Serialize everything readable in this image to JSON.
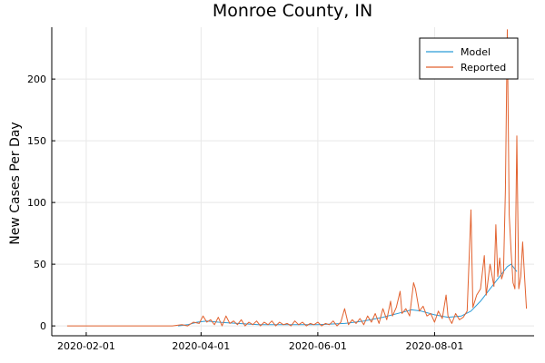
{
  "chart_data": {
    "type": "line",
    "title": "Monroe County, IN",
    "xlabel": "",
    "ylabel": "New Cases Per Day",
    "xlim": [
      "2020-01-14",
      "2020-09-22"
    ],
    "ylim": [
      -8,
      242
    ],
    "x_ticks": [
      "2020-02-01",
      "2020-04-01",
      "2020-06-01",
      "2020-08-01"
    ],
    "y_ticks": [
      0,
      50,
      100,
      150,
      200
    ],
    "grid": true,
    "legend_position": "top-right",
    "series": [
      {
        "name": "Model",
        "color": "#2b9cd8",
        "points": [
          [
            "2020-03-20",
            0
          ],
          [
            "2020-03-25",
            1
          ],
          [
            "2020-03-30",
            3
          ],
          [
            "2020-04-04",
            4
          ],
          [
            "2020-04-10",
            3
          ],
          [
            "2020-04-20",
            2
          ],
          [
            "2020-05-01",
            1
          ],
          [
            "2020-05-15",
            1
          ],
          [
            "2020-06-01",
            1
          ],
          [
            "2020-06-15",
            2
          ],
          [
            "2020-06-25",
            4
          ],
          [
            "2020-07-05",
            7
          ],
          [
            "2020-07-15",
            11
          ],
          [
            "2020-07-20",
            13
          ],
          [
            "2020-07-25",
            12
          ],
          [
            "2020-08-01",
            9
          ],
          [
            "2020-08-08",
            7
          ],
          [
            "2020-08-15",
            8
          ],
          [
            "2020-08-20",
            12
          ],
          [
            "2020-08-25",
            20
          ],
          [
            "2020-08-30",
            30
          ],
          [
            "2020-09-04",
            40
          ],
          [
            "2020-09-08",
            48
          ],
          [
            "2020-09-10",
            50
          ],
          [
            "2020-09-13",
            44
          ]
        ]
      },
      {
        "name": "Reported",
        "color": "#e2622f",
        "points": [
          [
            "2020-01-22",
            0
          ],
          [
            "2020-03-17",
            0
          ],
          [
            "2020-03-22",
            1
          ],
          [
            "2020-03-25",
            0
          ],
          [
            "2020-03-28",
            3
          ],
          [
            "2020-03-31",
            2
          ],
          [
            "2020-04-02",
            8
          ],
          [
            "2020-04-04",
            3
          ],
          [
            "2020-04-06",
            5
          ],
          [
            "2020-04-08",
            1
          ],
          [
            "2020-04-10",
            7
          ],
          [
            "2020-04-12",
            0
          ],
          [
            "2020-04-14",
            8
          ],
          [
            "2020-04-16",
            2
          ],
          [
            "2020-04-18",
            4
          ],
          [
            "2020-04-20",
            1
          ],
          [
            "2020-04-22",
            5
          ],
          [
            "2020-04-24",
            0
          ],
          [
            "2020-04-26",
            3
          ],
          [
            "2020-04-28",
            1
          ],
          [
            "2020-04-30",
            4
          ],
          [
            "2020-05-02",
            0
          ],
          [
            "2020-05-04",
            3
          ],
          [
            "2020-05-06",
            1
          ],
          [
            "2020-05-08",
            4
          ],
          [
            "2020-05-10",
            0
          ],
          [
            "2020-05-12",
            3
          ],
          [
            "2020-05-14",
            1
          ],
          [
            "2020-05-16",
            2
          ],
          [
            "2020-05-18",
            0
          ],
          [
            "2020-05-20",
            4
          ],
          [
            "2020-05-22",
            1
          ],
          [
            "2020-05-24",
            3
          ],
          [
            "2020-05-26",
            0
          ],
          [
            "2020-05-28",
            2
          ],
          [
            "2020-05-30",
            1
          ],
          [
            "2020-06-01",
            3
          ],
          [
            "2020-06-03",
            0
          ],
          [
            "2020-06-05",
            2
          ],
          [
            "2020-06-07",
            1
          ],
          [
            "2020-06-09",
            4
          ],
          [
            "2020-06-11",
            0
          ],
          [
            "2020-06-13",
            3
          ],
          [
            "2020-06-15",
            14
          ],
          [
            "2020-06-17",
            1
          ],
          [
            "2020-06-19",
            5
          ],
          [
            "2020-06-21",
            2
          ],
          [
            "2020-06-23",
            6
          ],
          [
            "2020-06-25",
            1
          ],
          [
            "2020-06-27",
            8
          ],
          [
            "2020-06-29",
            3
          ],
          [
            "2020-07-01",
            10
          ],
          [
            "2020-07-03",
            2
          ],
          [
            "2020-07-05",
            14
          ],
          [
            "2020-07-07",
            5
          ],
          [
            "2020-07-09",
            20
          ],
          [
            "2020-07-10",
            8
          ],
          [
            "2020-07-12",
            15
          ],
          [
            "2020-07-14",
            28
          ],
          [
            "2020-07-15",
            10
          ],
          [
            "2020-07-17",
            14
          ],
          [
            "2020-07-19",
            8
          ],
          [
            "2020-07-21",
            35
          ],
          [
            "2020-07-22",
            30
          ],
          [
            "2020-07-24",
            12
          ],
          [
            "2020-07-26",
            16
          ],
          [
            "2020-07-28",
            8
          ],
          [
            "2020-07-30",
            10
          ],
          [
            "2020-08-01",
            3
          ],
          [
            "2020-08-03",
            12
          ],
          [
            "2020-08-05",
            6
          ],
          [
            "2020-08-07",
            25
          ],
          [
            "2020-08-08",
            8
          ],
          [
            "2020-08-10",
            2
          ],
          [
            "2020-08-12",
            10
          ],
          [
            "2020-08-14",
            5
          ],
          [
            "2020-08-16",
            7
          ],
          [
            "2020-08-18",
            12
          ],
          [
            "2020-08-20",
            94
          ],
          [
            "2020-08-21",
            15
          ],
          [
            "2020-08-23",
            25
          ],
          [
            "2020-08-25",
            30
          ],
          [
            "2020-08-27",
            57
          ],
          [
            "2020-08-28",
            25
          ],
          [
            "2020-08-30",
            50
          ],
          [
            "2020-09-01",
            32
          ],
          [
            "2020-09-02",
            82
          ],
          [
            "2020-09-03",
            40
          ],
          [
            "2020-09-04",
            55
          ],
          [
            "2020-09-05",
            38
          ],
          [
            "2020-09-06",
            43
          ],
          [
            "2020-09-07",
            110
          ],
          [
            "2020-09-08",
            240
          ],
          [
            "2020-09-09",
            90
          ],
          [
            "2020-09-10",
            60
          ],
          [
            "2020-09-11",
            35
          ],
          [
            "2020-09-12",
            30
          ],
          [
            "2020-09-13",
            154
          ],
          [
            "2020-09-14",
            30
          ],
          [
            "2020-09-15",
            40
          ],
          [
            "2020-09-16",
            68
          ],
          [
            "2020-09-17",
            40
          ],
          [
            "2020-09-18",
            14
          ]
        ]
      }
    ]
  }
}
